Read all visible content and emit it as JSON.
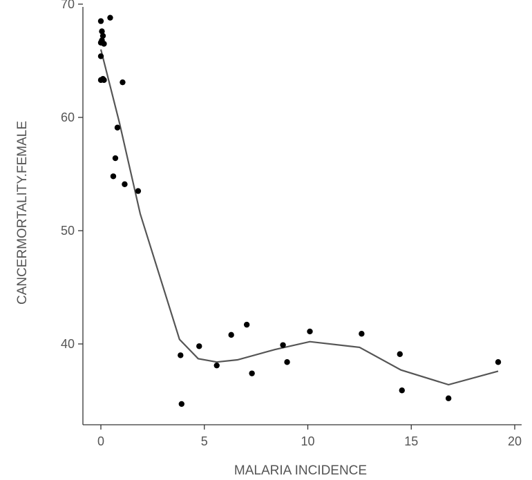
{
  "chart_data": {
    "type": "scatter",
    "title": "",
    "xlabel": "MALARIA INCIDENCE",
    "ylabel": "CANCERMORTALITY.FEMALE",
    "xlim": [
      -0.8,
      20.5
    ],
    "ylim": [
      32.8,
      70
    ],
    "x_ticks": [
      0,
      5,
      10,
      15,
      20
    ],
    "y_ticks": [
      40,
      50,
      60,
      70
    ],
    "x_tick_labels": [
      "0",
      "5",
      "10",
      "15",
      "20"
    ],
    "y_tick_labels": [
      "40",
      "50",
      "60",
      "70"
    ],
    "grid": false,
    "legend": "none",
    "colors": {
      "points": "#000000",
      "fit_line": "#555555",
      "axis": "#333333",
      "text": "#555555"
    },
    "series": [
      {
        "kind": "points",
        "x": [
          0.0,
          0.05,
          0.1,
          0.05,
          0.0,
          0.15,
          0.0,
          0.1,
          0.0,
          0.15,
          0.45,
          0.8,
          1.05,
          0.7,
          0.6,
          1.15,
          1.8,
          3.85,
          3.9,
          4.75,
          5.6,
          6.3,
          7.05,
          7.3,
          8.8,
          9.0,
          10.1,
          12.6,
          14.45,
          14.55,
          16.8,
          19.2
        ],
        "y": [
          68.5,
          67.6,
          67.2,
          66.8,
          66.6,
          66.5,
          65.4,
          63.4,
          63.3,
          63.3,
          68.8,
          59.1,
          63.1,
          56.4,
          54.8,
          54.1,
          53.5,
          39.0,
          34.7,
          39.8,
          38.1,
          40.8,
          41.7,
          37.4,
          39.9,
          38.4,
          41.1,
          40.9,
          39.1,
          35.9,
          35.2,
          38.4
        ]
      },
      {
        "kind": "line",
        "x": [
          0.0,
          0.9,
          1.9,
          3.8,
          4.7,
          5.6,
          6.6,
          8.4,
          10.1,
          12.5,
          14.5,
          16.8,
          19.2
        ],
        "y": [
          66.0,
          59.5,
          51.5,
          40.4,
          38.7,
          38.4,
          38.6,
          39.5,
          40.2,
          39.7,
          37.7,
          36.4,
          37.6
        ]
      }
    ]
  }
}
